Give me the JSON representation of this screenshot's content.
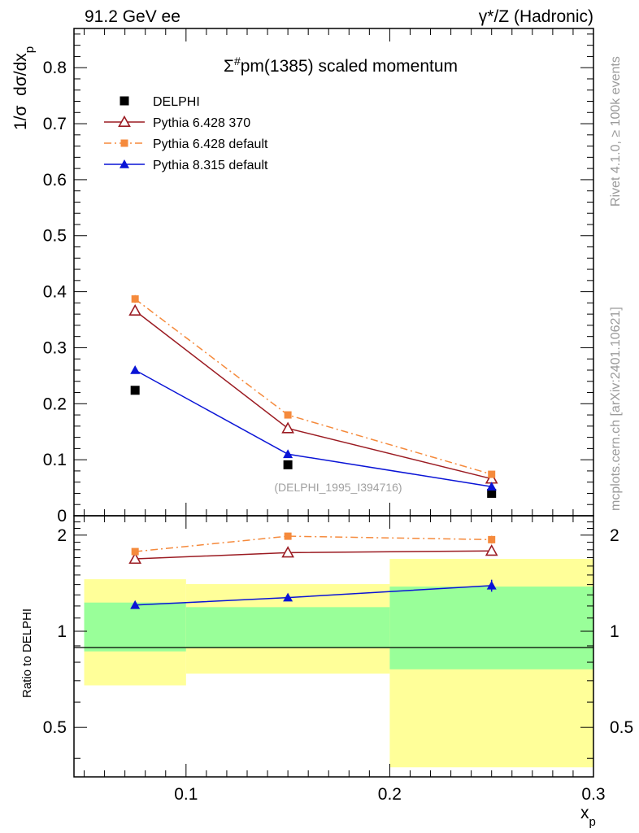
{
  "header": {
    "left_label": "91.2 GeV ee",
    "right_label": "γ*/Z (Hadronic)"
  },
  "side_text": {
    "rivet": "Rivet 4.1.0, ≥ 100k events",
    "mcplots": "mcplots.cern.ch [arXiv:2401.10621]"
  },
  "chart_data": [
    {
      "type": "scatter",
      "panel": "main",
      "title": "Σ#pm(1385) scaled momentum",
      "title_sup": "#",
      "ylabel": "1/σ  dσ/dxp",
      "xlim": [
        0.045,
        0.3
      ],
      "ylim": [
        0,
        0.87
      ],
      "yticks": [
        0,
        0.1,
        0.2,
        0.3,
        0.4,
        0.5,
        0.6,
        0.7,
        0.8
      ],
      "ytick_labels": [
        "0",
        "0.1",
        "0.2",
        "0.3",
        "0.4",
        "0.5",
        "0.6",
        "0.7",
        "0.8"
      ],
      "watermark": "(DELPHI_1995_I394716)",
      "legend_position": "top-left",
      "x": [
        0.075,
        0.15,
        0.25
      ],
      "series": [
        {
          "name": "DELPHI",
          "values": [
            0.224,
            0.091,
            0.04
          ],
          "errors": [
            0,
            0,
            0
          ],
          "color": "#000000",
          "marker": "square",
          "line": "none"
        },
        {
          "name": "Pythia 6.428 370",
          "values": [
            0.366,
            0.156,
            0.066
          ],
          "errors": [
            0.006,
            0.003,
            0.002
          ],
          "color": "#9b1b22",
          "marker": "triangle-open",
          "line": "solid"
        },
        {
          "name": "Pythia 6.428 default",
          "values": [
            0.387,
            0.18,
            0.074
          ],
          "errors": [
            0.007,
            0.003,
            0.002
          ],
          "color": "#f58a3c",
          "marker": "square-small",
          "line": "dashdot"
        },
        {
          "name": "Pythia 8.315 default",
          "values": [
            0.26,
            0.11,
            0.052
          ],
          "errors": [
            0.006,
            0.003,
            0.002
          ],
          "color": "#0a14d6",
          "marker": "triangle",
          "line": "solid"
        }
      ]
    },
    {
      "type": "scatter",
      "panel": "ratio",
      "ylabel": "Ratio to DELPHI",
      "xlabel": "xp",
      "ylim": [
        0.35,
        2.3
      ],
      "yticks": [
        0.5,
        1,
        2
      ],
      "ytick_labels": [
        "0.5",
        "1",
        "2"
      ],
      "xticks": [
        0.1,
        0.2,
        0.3
      ],
      "xtick_labels": [
        "0.1",
        "0.2",
        "0.3"
      ],
      "x": [
        0.075,
        0.15,
        0.25
      ],
      "bands": [
        {
          "x0": 0.05,
          "x1": 0.1,
          "green": [
            0.865,
            1.23
          ],
          "yellow": [
            0.677,
            1.455
          ]
        },
        {
          "x0": 0.1,
          "x1": 0.2,
          "green": [
            0.885,
            1.19
          ],
          "yellow": [
            0.737,
            1.405
          ]
        },
        {
          "x0": 0.2,
          "x1": 0.3,
          "green": [
            0.76,
            1.38
          ],
          "yellow": [
            0.375,
            1.685
          ]
        }
      ],
      "series": [
        {
          "name": "Pythia 6.428 370",
          "values": [
            1.685,
            1.763,
            1.785
          ],
          "errors": [
            0.02,
            0.025,
            0.035
          ],
          "color": "#9b1b22",
          "marker": "triangle-open",
          "line": "solid"
        },
        {
          "name": "Pythia 6.428 default",
          "values": [
            1.776,
            1.985,
            1.936
          ],
          "errors": [
            0.025,
            0.03,
            0.055
          ],
          "color": "#f58a3c",
          "marker": "square-small",
          "line": "dashdot"
        },
        {
          "name": "Pythia 8.315 default",
          "values": [
            1.208,
            1.275,
            1.39
          ],
          "errors": [
            0.03,
            0.03,
            0.06
          ],
          "color": "#0a14d6",
          "marker": "triangle",
          "line": "solid"
        }
      ]
    }
  ]
}
